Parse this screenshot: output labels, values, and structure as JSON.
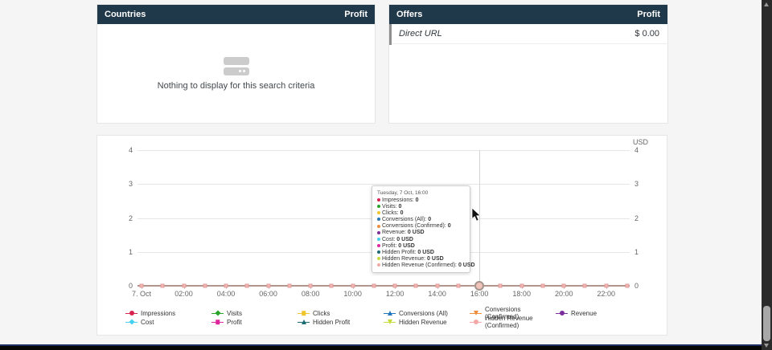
{
  "panels": {
    "countries": {
      "title": "Countries",
      "metric": "Profit",
      "empty_text": "Nothing to display for this search criteria"
    },
    "offers": {
      "title": "Offers",
      "metric": "Profit",
      "rows": [
        {
          "name": "Direct URL",
          "value": "$ 0.00"
        }
      ]
    }
  },
  "colors": {
    "header_bg": "#20394a",
    "page_bg": "#f5f5f6",
    "grid": "#e6e6e6",
    "axis_text": "#666666",
    "combined_line": "#b1948c",
    "marker_fill": "#f3b6b3",
    "marker_border": "#e09c99"
  },
  "chart_data": {
    "type": "line",
    "unit": "USD",
    "ylim": [
      0,
      4
    ],
    "y_ticks": [
      4,
      3,
      2,
      1,
      0
    ],
    "x_labels": [
      "7. Oct",
      "02:00",
      "04:00",
      "06:00",
      "08:00",
      "10:00",
      "12:00",
      "14:00",
      "16:00",
      "18:00",
      "20:00",
      "22:00"
    ],
    "points_per_label": 2,
    "num_points": 24,
    "grid": true,
    "legend_position": "bottom",
    "hover_index": 16,
    "series": [
      {
        "name": "Impressions",
        "color": "#d6234f",
        "marker": "circle",
        "values": [
          0,
          0,
          0,
          0,
          0,
          0,
          0,
          0,
          0,
          0,
          0,
          0,
          0,
          0,
          0,
          0,
          0,
          0,
          0,
          0,
          0,
          0,
          0,
          0
        ]
      },
      {
        "name": "Visits",
        "color": "#29a329",
        "marker": "diamond",
        "values": [
          0,
          0,
          0,
          0,
          0,
          0,
          0,
          0,
          0,
          0,
          0,
          0,
          0,
          0,
          0,
          0,
          0,
          0,
          0,
          0,
          0,
          0,
          0,
          0
        ]
      },
      {
        "name": "Clicks",
        "color": "#f0c52c",
        "marker": "square",
        "values": [
          0,
          0,
          0,
          0,
          0,
          0,
          0,
          0,
          0,
          0,
          0,
          0,
          0,
          0,
          0,
          0,
          0,
          0,
          0,
          0,
          0,
          0,
          0,
          0
        ]
      },
      {
        "name": "Conversions (All)",
        "color": "#2276b9",
        "marker": "triangle",
        "values": [
          0,
          0,
          0,
          0,
          0,
          0,
          0,
          0,
          0,
          0,
          0,
          0,
          0,
          0,
          0,
          0,
          0,
          0,
          0,
          0,
          0,
          0,
          0,
          0
        ]
      },
      {
        "name": "Conversions (Confirmed)",
        "color": "#ef8f3d",
        "marker": "triangle-down",
        "values": [
          0,
          0,
          0,
          0,
          0,
          0,
          0,
          0,
          0,
          0,
          0,
          0,
          0,
          0,
          0,
          0,
          0,
          0,
          0,
          0,
          0,
          0,
          0,
          0
        ]
      },
      {
        "name": "Revenue",
        "color": "#7c2d9c",
        "marker": "circle",
        "values": [
          0,
          0,
          0,
          0,
          0,
          0,
          0,
          0,
          0,
          0,
          0,
          0,
          0,
          0,
          0,
          0,
          0,
          0,
          0,
          0,
          0,
          0,
          0,
          0
        ]
      },
      {
        "name": "Cost",
        "color": "#45d1ef",
        "marker": "diamond",
        "values": [
          0,
          0,
          0,
          0,
          0,
          0,
          0,
          0,
          0,
          0,
          0,
          0,
          0,
          0,
          0,
          0,
          0,
          0,
          0,
          0,
          0,
          0,
          0,
          0
        ]
      },
      {
        "name": "Profit",
        "color": "#e0269e",
        "marker": "square",
        "values": [
          0,
          0,
          0,
          0,
          0,
          0,
          0,
          0,
          0,
          0,
          0,
          0,
          0,
          0,
          0,
          0,
          0,
          0,
          0,
          0,
          0,
          0,
          0,
          0
        ]
      },
      {
        "name": "Hidden Profit",
        "color": "#1a6b74",
        "marker": "triangle",
        "values": [
          0,
          0,
          0,
          0,
          0,
          0,
          0,
          0,
          0,
          0,
          0,
          0,
          0,
          0,
          0,
          0,
          0,
          0,
          0,
          0,
          0,
          0,
          0,
          0
        ]
      },
      {
        "name": "Hidden Revenue",
        "color": "#c8dc3c",
        "marker": "triangle-down",
        "values": [
          0,
          0,
          0,
          0,
          0,
          0,
          0,
          0,
          0,
          0,
          0,
          0,
          0,
          0,
          0,
          0,
          0,
          0,
          0,
          0,
          0,
          0,
          0,
          0
        ]
      },
      {
        "name": "Hidden Revenue (Confirmed)",
        "color": "#f2a8a4",
        "marker": "circle",
        "values": [
          0,
          0,
          0,
          0,
          0,
          0,
          0,
          0,
          0,
          0,
          0,
          0,
          0,
          0,
          0,
          0,
          0,
          0,
          0,
          0,
          0,
          0,
          0,
          0
        ]
      }
    ],
    "tooltip": {
      "title": "Tuesday, 7 Oct, 16:00",
      "items": [
        {
          "label": "Impressions",
          "value": "0"
        },
        {
          "label": "Visits",
          "value": "0"
        },
        {
          "label": "Clicks",
          "value": "0"
        },
        {
          "label": "Conversions (All)",
          "value": "0"
        },
        {
          "label": "Conversions (Confirmed)",
          "value": "0"
        },
        {
          "label": "Revenue",
          "value": "0 USD"
        },
        {
          "label": "Cost",
          "value": "0 USD"
        },
        {
          "label": "Profit",
          "value": "0 USD"
        },
        {
          "label": "Hidden Profit",
          "value": "0 USD"
        },
        {
          "label": "Hidden Revenue",
          "value": "0 USD"
        },
        {
          "label": "Hidden Revenue (Confirmed)",
          "value": "0 USD"
        }
      ]
    }
  }
}
